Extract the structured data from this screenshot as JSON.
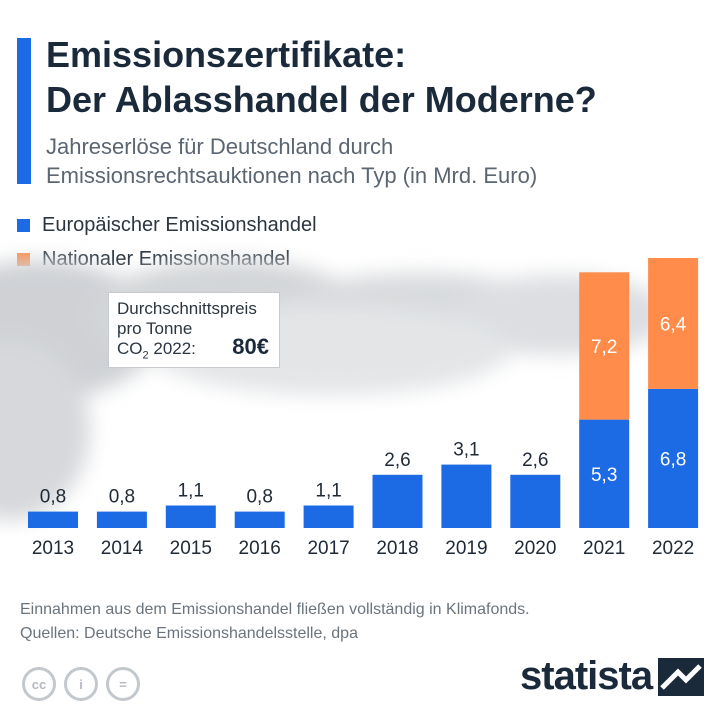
{
  "header": {
    "title_line1": "Emissionszertifikate:",
    "title_line2": "Der Ablasshandel der Moderne?",
    "subtitle_line1": "Jahreserlöse für Deutschland durch",
    "subtitle_line2": "Emissionsrechtsauktionen nach Typ (in Mrd. Euro)"
  },
  "colors": {
    "accent": "#1d6ae5",
    "european": "#1d6ae5",
    "national": "#ff8c4a"
  },
  "price_box": {
    "label_line1": "Durchschnittspreis",
    "label_line2": "pro Tonne",
    "label_co": "CO",
    "label_sub": "2",
    "label_year": "2022:",
    "value": "80€"
  },
  "chart_data": {
    "type": "bar",
    "stacked": true,
    "title": "Jahreserlöse für Deutschland durch Emissionsrechtsauktionen nach Typ (in Mrd. Euro)",
    "xlabel": "",
    "ylabel": "",
    "ylim": [
      0,
      13.2
    ],
    "categories": [
      "2013",
      "2014",
      "2015",
      "2016",
      "2017",
      "2018",
      "2019",
      "2020",
      "2021",
      "2022"
    ],
    "series": [
      {
        "name": "Europäischer Emissionshandel",
        "color": "#1d6ae5",
        "values": [
          0.8,
          0.8,
          1.1,
          0.8,
          1.1,
          2.6,
          3.1,
          2.6,
          5.3,
          6.8
        ],
        "labels": [
          "0,8",
          "0,8",
          "1,1",
          "0,8",
          "1,1",
          "2,6",
          "3,1",
          "2,6",
          "5,3",
          "6,8"
        ]
      },
      {
        "name": "Nationaler Emissionshandel",
        "color": "#ff8c4a",
        "values": [
          0,
          0,
          0,
          0,
          0,
          0,
          0,
          0,
          7.2,
          6.4
        ],
        "labels": [
          "",
          "",
          "",
          "",
          "",
          "",
          "",
          "",
          "7,2",
          "6,4"
        ]
      }
    ],
    "legend_position": "top-left"
  },
  "footer": {
    "note": "Einnahmen aus dem Emissionshandel fließen vollständig in Klimafonds.",
    "sources": "Quellen: Deutsche Emissionshandelsstelle, dpa"
  },
  "license_icons": [
    "cc-icon",
    "by-icon",
    "nd-icon"
  ],
  "license_icon_glyphs": [
    "cc",
    "i",
    "="
  ],
  "brand": {
    "name": "statista",
    "logo_icon": "statista-logo-icon"
  }
}
